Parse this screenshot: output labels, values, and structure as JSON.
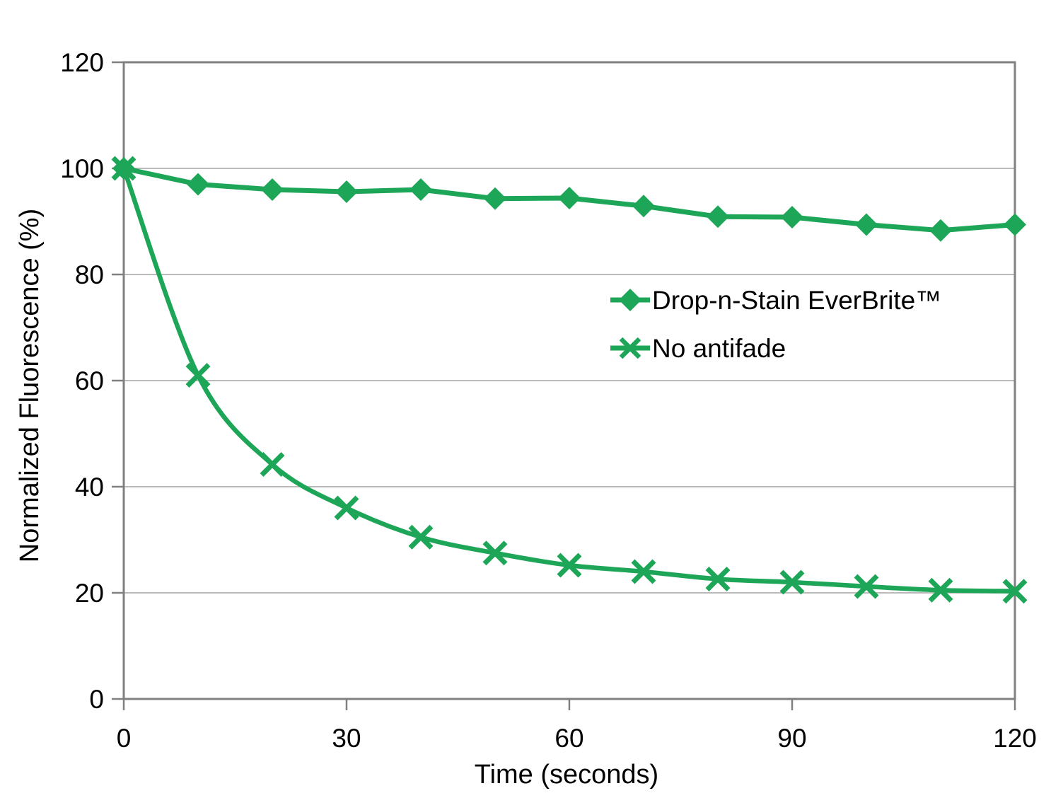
{
  "figure": {
    "background": "#FFFFFF"
  },
  "chart_data": {
    "type": "line",
    "title": "",
    "xlabel": "Time (seconds)",
    "ylabel": "Normalized Fluorescence (%)",
    "xlim": [
      0,
      120
    ],
    "ylim": [
      0,
      120
    ],
    "xticks": [
      0,
      30,
      60,
      90,
      120
    ],
    "yticks": [
      0,
      20,
      40,
      60,
      80,
      100,
      120
    ],
    "grid": "horizontal-only",
    "plot_border": true,
    "legend_position": "inside-right",
    "x": [
      0,
      10,
      20,
      30,
      40,
      50,
      60,
      70,
      80,
      90,
      100,
      110,
      120
    ],
    "series": [
      {
        "name": "Drop-n-Stain EverBrite™",
        "marker": "diamond",
        "smooth": false,
        "values": [
          100,
          97,
          96,
          95.6,
          96,
          94.3,
          94.4,
          92.9,
          90.9,
          90.8,
          89.4,
          88.3,
          89.4
        ]
      },
      {
        "name": "No antifade",
        "marker": "x",
        "smooth": true,
        "values": [
          100,
          61,
          44.2,
          36,
          30.5,
          27.5,
          25.2,
          24,
          22.6,
          22,
          21.2,
          20.5,
          20.3
        ]
      }
    ],
    "colors": {
      "series": "#1EA658",
      "axis": "#808080",
      "gridline": "#A3A3A3",
      "text": "#000000"
    }
  }
}
